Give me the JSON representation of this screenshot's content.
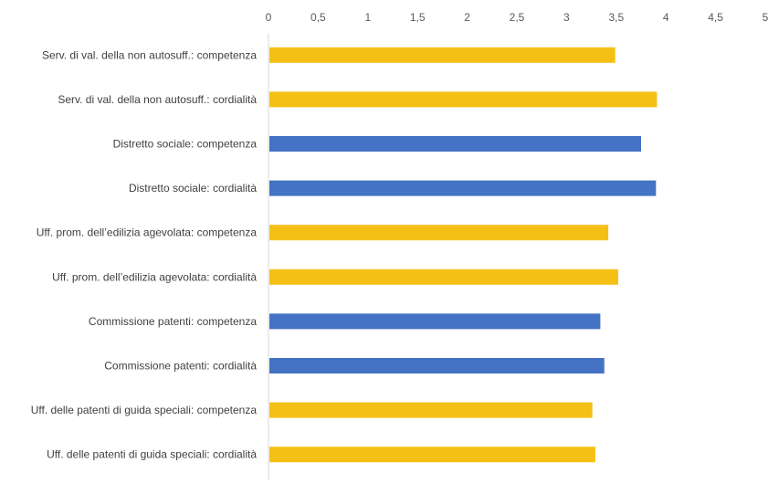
{
  "chart_data": {
    "type": "bar",
    "orientation": "horizontal",
    "x_axis_position": "top",
    "xlim": [
      0,
      5
    ],
    "x_ticks": [
      "0",
      "0,5",
      "1",
      "1,5",
      "2",
      "2,5",
      "3",
      "3,5",
      "4",
      "4,5",
      "5"
    ],
    "x_tick_values": [
      0,
      0.5,
      1,
      1.5,
      2,
      2.5,
      3,
      3.5,
      4,
      4.5,
      5
    ],
    "grid": false,
    "categories": [
      "Serv. di val. della non autosuff.: competenza",
      "Serv. di val. della non autosuff.: cordialità",
      "Distretto sociale: competenza",
      "Distretto sociale: cordialità",
      "Uff. prom. dell’edilizia agevolata: competenza",
      "Uff. prom. dell’edilizia agevolata: cordialità",
      "Commissione patenti: competenza",
      "Commissione patenti: cordialità",
      "Uff. delle patenti di guida speciali: competenza",
      "Uff. delle patenti di guida speciali: cordialità"
    ],
    "values": [
      3.49,
      3.91,
      3.75,
      3.9,
      3.42,
      3.52,
      3.34,
      3.38,
      3.26,
      3.29
    ],
    "bar_colors": [
      "#F5C016",
      "#F5C016",
      "#4472C4",
      "#4472C4",
      "#F5C016",
      "#F5C016",
      "#4472C4",
      "#4472C4",
      "#F5C016",
      "#F5C016"
    ],
    "axis_color": "#D9D9D9"
  }
}
